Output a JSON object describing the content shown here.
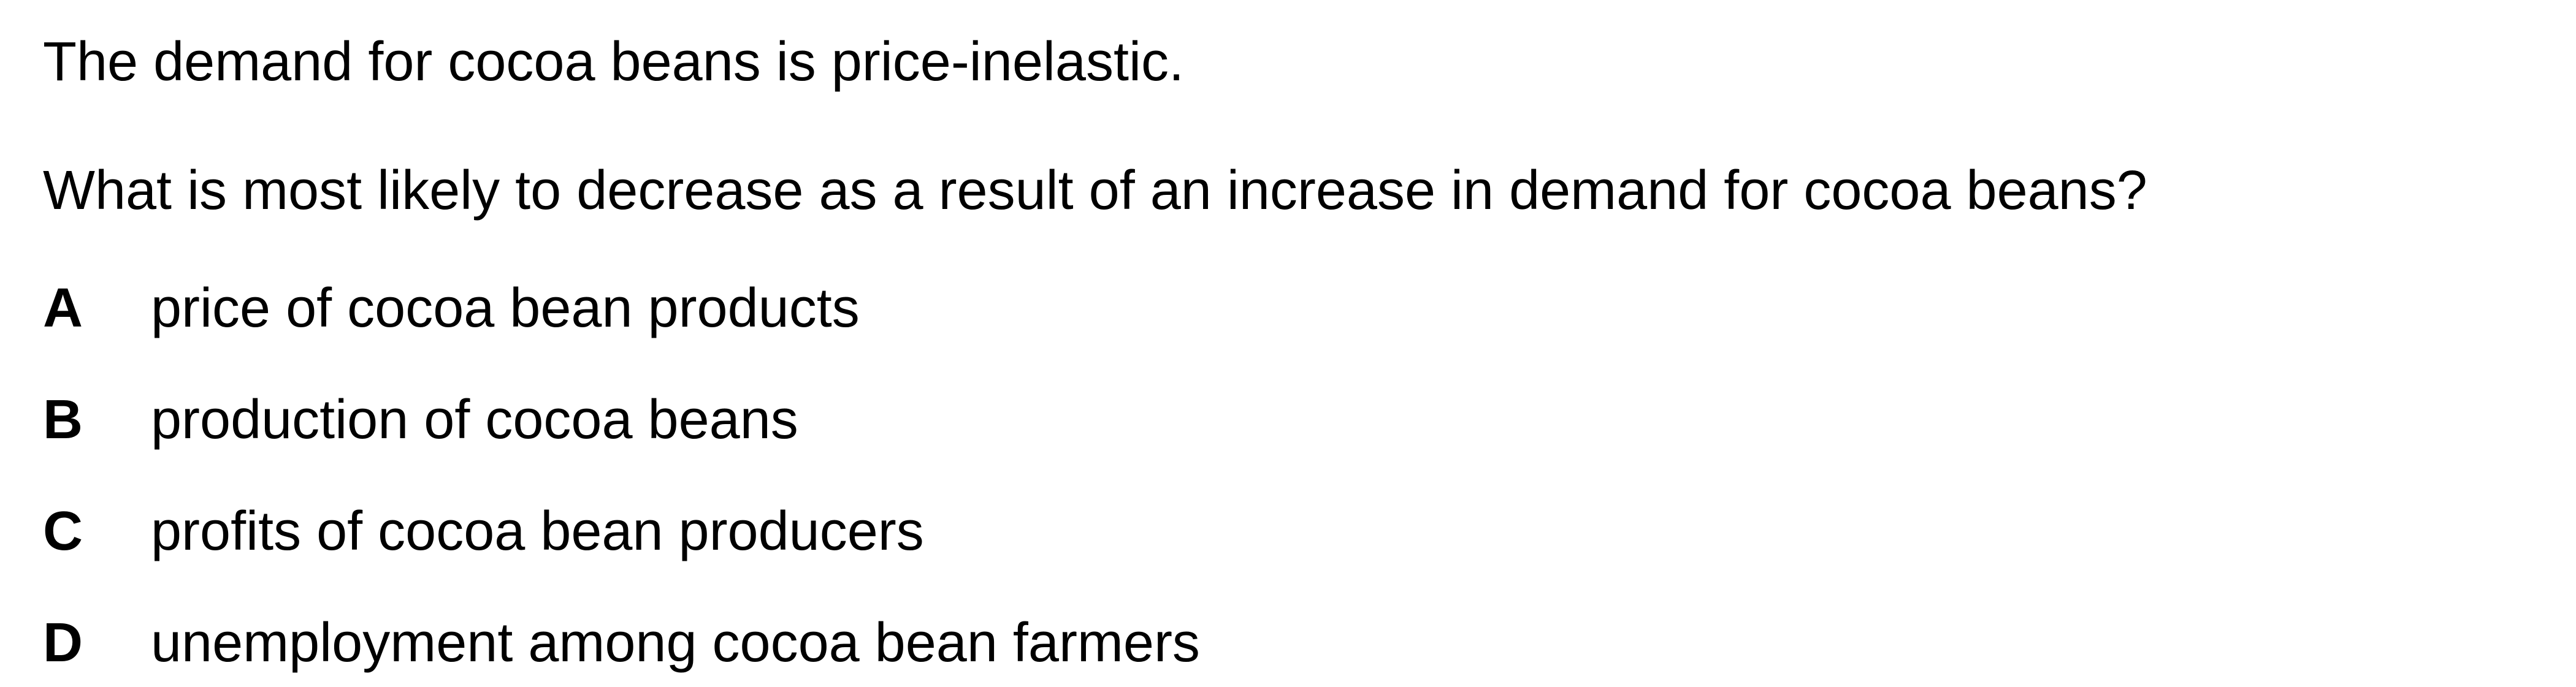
{
  "question": {
    "stem_intro": "The demand for cocoa beans is price-inelastic.",
    "stem_question": "What is most likely to decrease as a result of an increase in demand for cocoa beans?",
    "options": [
      {
        "letter": "A",
        "text": "price of cocoa bean products"
      },
      {
        "letter": "B",
        "text": "production of cocoa beans"
      },
      {
        "letter": "C",
        "text": "profits of cocoa bean producers"
      },
      {
        "letter": "D",
        "text": "unemployment among cocoa bean farmers"
      }
    ]
  }
}
